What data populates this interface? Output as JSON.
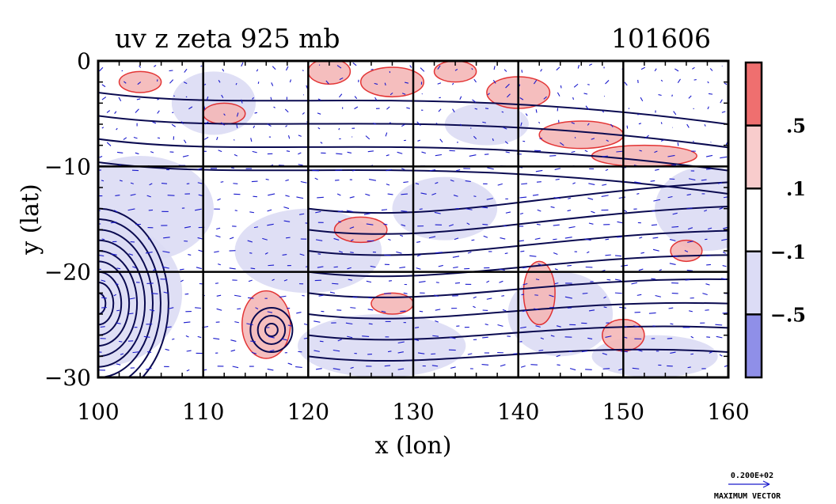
{
  "chart_data": {
    "type": "contour-vector-map",
    "title": "uv z zeta 925 mb",
    "date_label": "101606",
    "xlabel": "x (lon)",
    "ylabel": "y (lat)",
    "xlim": [
      100,
      160
    ],
    "ylim": [
      -30,
      0
    ],
    "x_ticks": [
      100,
      110,
      120,
      130,
      140,
      150,
      160
    ],
    "y_ticks": [
      {
        "value": 0,
        "label": "0"
      },
      {
        "value": -10,
        "label": "−10"
      },
      {
        "value": -20,
        "label": "−20"
      },
      {
        "value": -30,
        "label": "−30"
      }
    ],
    "grid": true,
    "colorbar": {
      "position": "right",
      "ticks": [
        ".5",
        ".1",
        "−.1",
        "−.5"
      ],
      "bands": [
        "#ef6f6f",
        "#f8cccc",
        "#ffffff",
        "#dcdcf6",
        "#8f8fe8"
      ]
    },
    "colors": {
      "positive_contour": "#e02020",
      "positive_fill": "#f5b8b8",
      "negative_fill": "#dcdcf4",
      "vectors": "#1a1acc",
      "height_contour": "#0a0a50"
    },
    "vector_key": {
      "value_label": "0.200E+02",
      "caption": "MAXIMUM VECTOR"
    }
  }
}
